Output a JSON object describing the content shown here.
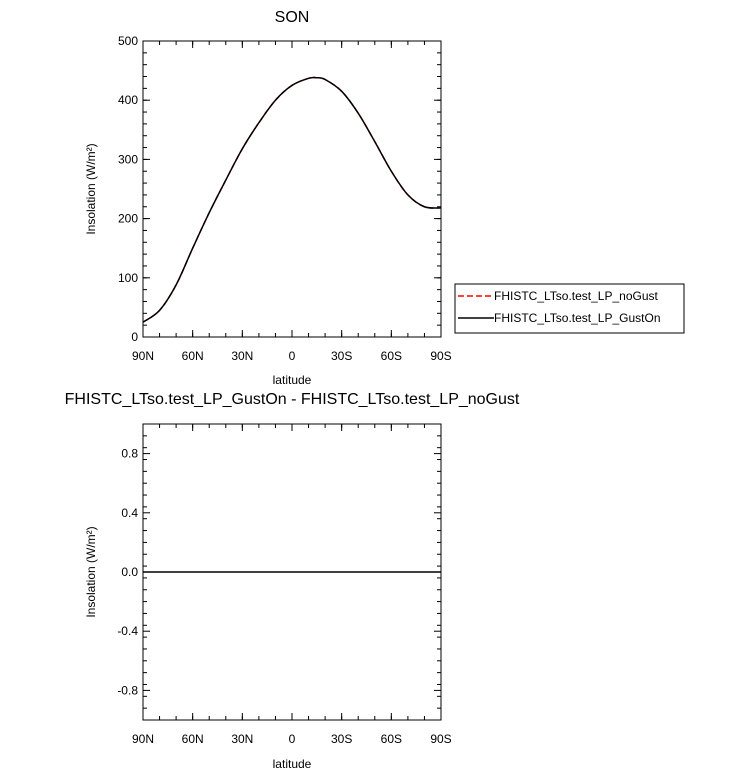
{
  "chart_data": [
    {
      "type": "line",
      "title": "SON",
      "xlabel": "latitude",
      "ylabel": "Insolation (W/m²)",
      "xlim": [
        -90,
        90
      ],
      "ylim": [
        0,
        500
      ],
      "x_ticks": [
        -90,
        -60,
        -30,
        0,
        30,
        60,
        90
      ],
      "x_tick_labels": [
        "90N",
        "60N",
        "30N",
        "0",
        "30S",
        "60S",
        "90S"
      ],
      "y_ticks": [
        0,
        100,
        200,
        300,
        400,
        500
      ],
      "y_tick_labels": [
        "0",
        "100",
        "200",
        "300",
        "400",
        "500"
      ],
      "legend_position": "right",
      "x": [
        -90,
        -80,
        -70,
        -60,
        -50,
        -40,
        -30,
        -20,
        -10,
        0,
        10,
        15,
        20,
        30,
        40,
        50,
        60,
        70,
        80,
        90
      ],
      "series": [
        {
          "name": "FHISTC_LTso.test_LP_noGust",
          "color": "#ff0000",
          "dash": "dashed",
          "values": [
            25,
            45,
            88,
            150,
            210,
            265,
            318,
            362,
            400,
            425,
            437,
            438,
            435,
            415,
            378,
            330,
            280,
            240,
            220,
            218
          ]
        },
        {
          "name": "FHISTC_LTso.test_LP_GustOn",
          "color": "#000000",
          "dash": "solid",
          "values": [
            25,
            45,
            88,
            150,
            210,
            265,
            318,
            362,
            400,
            425,
            437,
            438,
            435,
            415,
            378,
            330,
            280,
            240,
            220,
            218
          ]
        }
      ]
    },
    {
      "type": "line",
      "title": "FHISTC_LTso.test_LP_GustOn - FHISTC_LTso.test_LP_noGust",
      "xlabel": "latitude",
      "ylabel": "Insolation (W/m²)",
      "xlim": [
        -90,
        90
      ],
      "ylim": [
        -1,
        1
      ],
      "x_ticks": [
        -90,
        -60,
        -30,
        0,
        30,
        60,
        90
      ],
      "x_tick_labels": [
        "90N",
        "60N",
        "30N",
        "0",
        "30S",
        "60S",
        "90S"
      ],
      "y_ticks": [
        -0.8,
        -0.4,
        0.0,
        0.4,
        0.8
      ],
      "y_tick_labels": [
        "-0.8",
        "-0.4",
        "0.0",
        "0.4",
        "0.8"
      ],
      "x": [
        -90,
        90
      ],
      "series": [
        {
          "color": "#000000",
          "dash": "solid",
          "values": [
            0,
            0
          ]
        }
      ]
    }
  ]
}
